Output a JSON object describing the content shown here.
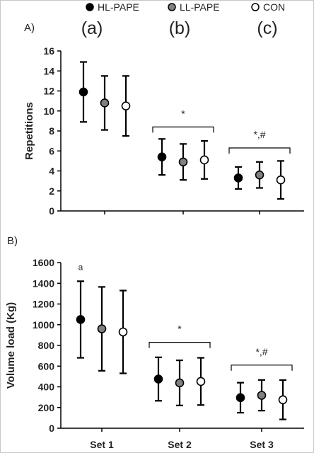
{
  "legend": [
    {
      "name": "HL-PAPE",
      "fill": "#000000"
    },
    {
      "name": "LL-PAPE",
      "fill": "#808080"
    },
    {
      "name": "CON",
      "fill": "#ffffff"
    }
  ],
  "column_letters": [
    "(a)",
    "(b)",
    "(c)"
  ],
  "chart_data": [
    {
      "type": "scatter",
      "panel_label": "A)",
      "ylabel": "Repetitions",
      "ylim": [
        0,
        16
      ],
      "yticks": [
        0,
        2,
        4,
        6,
        8,
        10,
        12,
        14,
        16
      ],
      "categories": [
        "Set 1",
        "Set 2",
        "Set 3"
      ],
      "error_bars": "mean ± SD",
      "series": [
        {
          "name": "HL-PAPE",
          "values": [
            11.9,
            5.4,
            3.3
          ],
          "sd": [
            3.0,
            1.8,
            1.1
          ]
        },
        {
          "name": "LL-PAPE",
          "values": [
            10.8,
            4.9,
            3.6
          ],
          "sd": [
            2.7,
            1.8,
            1.3
          ]
        },
        {
          "name": "CON",
          "values": [
            10.5,
            5.1,
            3.1
          ],
          "sd": [
            3.0,
            1.9,
            1.9
          ]
        }
      ],
      "annotations": [
        {
          "category": "Set 2",
          "text": "*",
          "bracket_y": 8.4
        },
        {
          "category": "Set 3",
          "text": "*,#",
          "bracket_y": 6.3
        }
      ]
    },
    {
      "type": "scatter",
      "panel_label": "B)",
      "ylabel": "Volume load (Kg)",
      "xticks_visible": true,
      "ylim": [
        0,
        1600
      ],
      "yticks": [
        0,
        200,
        400,
        600,
        800,
        1000,
        1200,
        1400,
        1600
      ],
      "categories": [
        "Set 1",
        "Set 2",
        "Set 3"
      ],
      "error_bars": "mean ± SD",
      "series": [
        {
          "name": "HL-PAPE",
          "values": [
            1050,
            475,
            295
          ],
          "sd": [
            370,
            210,
            145
          ]
        },
        {
          "name": "LL-PAPE",
          "values": [
            960,
            438,
            318
          ],
          "sd": [
            405,
            218,
            148
          ]
        },
        {
          "name": "CON",
          "values": [
            930,
            452,
            275
          ],
          "sd": [
            400,
            228,
            190
          ]
        }
      ],
      "annotations": [
        {
          "category": "Set 1",
          "series": "HL-PAPE",
          "text": "a"
        },
        {
          "category": "Set 2",
          "text": "*",
          "bracket_y": 830
        },
        {
          "category": "Set 3",
          "text": "*,#",
          "bracket_y": 610
        }
      ]
    }
  ]
}
